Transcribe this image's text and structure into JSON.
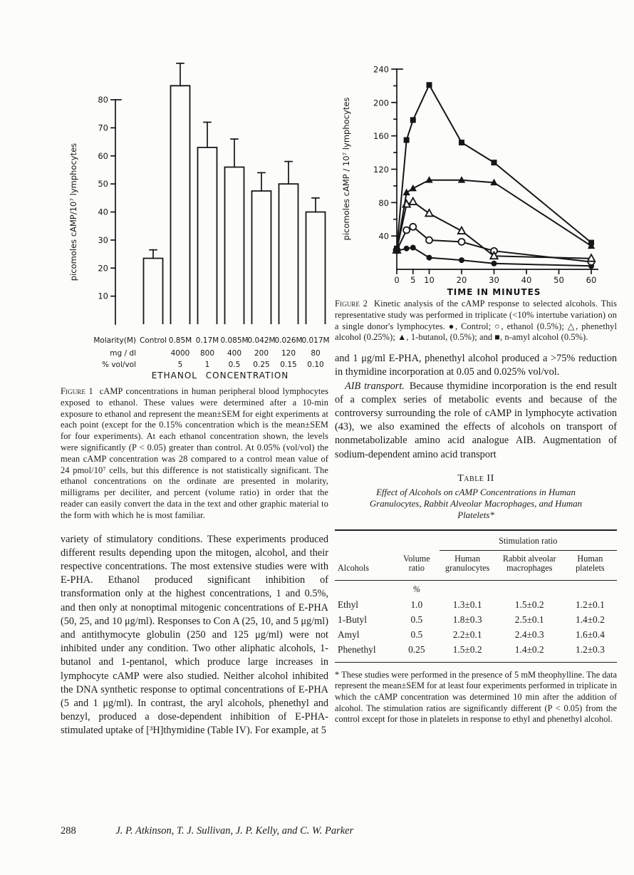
{
  "page": {
    "number": "288",
    "running_authors": "J. P. Atkinson, T. J. Sullivan, J. P. Kelly, and C. W. Parker"
  },
  "figure1": {
    "label": "Figure 1",
    "caption": "cAMP concentrations in human peripheral blood lymphocytes exposed to ethanol. These values were determined after a 10-min exposure to ethanol and represent the mean±SEM for eight experiments at each point (except for the 0.15% concentration which is the mean±SEM for four experiments). At each ethanol concentration shown, the levels were significantly (P < 0.05) greater than control. At 0.05% (vol/vol) the mean cAMP concentration was 28 compared to a control mean value of 24 pmol/10⁷ cells, but this difference is not statistically significant. The ethanol concentrations on the ordinate are presented in molarity, milligrams per deciliter, and percent (volume ratio) in order that the reader can easily convert the data in the text and other graphic material to the form with which he is most familiar."
  },
  "figure2": {
    "label": "Figure 2",
    "caption": "Kinetic analysis of the cAMP response to selected alcohols. This representative study was performed in triplicate (<10% intertube variation) on a single donor's lymphocytes. ●, Control; ○, ethanol (0.5%); △, phenethyl alcohol (0.25%); ▲, 1-butanol, (0.5%); and ■, n-amyl alcohol (0.5%)."
  },
  "body": {
    "left_column": "variety of stimulatory conditions. These experiments produced different results depending upon the mitogen, alcohol, and their respective concentrations. The most extensive studies were with E-PHA. Ethanol produced significant inhibition of transformation only at the highest concentrations, 1 and 0.5%, and then only at nonoptimal mitogenic concentrations of E-PHA (50, 25, and 10 μg/ml). Responses to Con A (25, 10, and 5 μg/ml) and antithymocyte globulin (250 and 125 μg/ml) were not inhibited under any condition. Two other aliphatic alcohols, 1-butanol and 1-pentanol, which produce large increases in lymphocyte cAMP were also studied. Neither alcohol inhibited the DNA synthetic response to optimal concentrations of E-PHA (5 and 1 μg/ml). In contrast, the aryl alcohols, phenethyl and benzyl, produced a dose-dependent inhibition of E-PHA-stimulated uptake of [³H]thymidine (Table IV). For example, at 5",
    "right_p1": "and 1 μg/ml E-PHA, phenethyl alcohol produced a >75% reduction in thymidine incorporation at 0.05 and 0.025% vol/vol.",
    "right_p2_lead": "AIB transport.",
    "right_p2": "Because thymidine incorporation is the end result of a complex series of metabolic events and because of the controversy surrounding the role of cAMP in lymphocyte activation (43), we also examined the effects of alcohols on transport of nonmetabolizable amino acid analogue AIB. Augmentation of sodium-dependent amino acid transport"
  },
  "table2": {
    "label": "Table II",
    "title": "Effect of Alcohols on cAMP Concentrations in Human Granulocytes, Rabbit Alveolar Macrophages, and Human Platelets*",
    "spanner": "Stimulation ratio",
    "columns": [
      "Alcohols",
      "Volume ratio",
      "Human granulocytes",
      "Rabbit alveolar macrophages",
      "Human platelets"
    ],
    "unit": "%",
    "rows": [
      [
        "Ethyl",
        "1.0",
        "1.3±0.1",
        "1.5±0.2",
        "1.2±0.1"
      ],
      [
        "1-Butyl",
        "0.5",
        "1.8±0.3",
        "2.5±0.1",
        "1.4±0.2"
      ],
      [
        "Amyl",
        "0.5",
        "2.2±0.1",
        "2.4±0.3",
        "1.6±0.4"
      ],
      [
        "Phenethyl",
        "0.25",
        "1.5±0.2",
        "1.4±0.2",
        "1.2±0.3"
      ]
    ],
    "footnote": "* These studies were performed in the presence of 5 mM theophylline. The data represent the mean±SEM for at least four experiments performed in triplicate in which the cAMP concentration was determined 10 min after the addition of alcohol. The stimulation ratios are significantly different (P < 0.05) from the control except for those in platelets in response to ethyl and phenethyl alcohol."
  },
  "chart_data": [
    {
      "id": "figure1",
      "type": "bar",
      "title": "",
      "xlabel": "ETHANOL CONCENTRATION",
      "ylabel": "picomoles cAMP/10⁷ lymphocytes",
      "ylim": [
        0,
        93
      ],
      "yticks": [
        10,
        20,
        30,
        40,
        50,
        60,
        70,
        80
      ],
      "categories": [
        "Control",
        "0.85M",
        "0.17M",
        "0.085M",
        "0.042M",
        "0.026M",
        "0.017M"
      ],
      "values": [
        23.5,
        85,
        63,
        56,
        47.5,
        50,
        40
      ],
      "errors": [
        3,
        8,
        9,
        10,
        6.5,
        8,
        5
      ],
      "x_axis_rows": [
        {
          "label": "Molarity(M)",
          "values": [
            "Control",
            "0.85M",
            "0.17M",
            "0.085M",
            "0.042M",
            "0.026M",
            "0.017M"
          ]
        },
        {
          "label": "mg / dl",
          "values": [
            "",
            "4000",
            "800",
            "400",
            "200",
            "120",
            "80"
          ]
        },
        {
          "label": "% vol/vol",
          "values": [
            "",
            "5",
            "1",
            "0.5",
            "0.25",
            "0.15",
            "0.10"
          ]
        }
      ],
      "grid": false,
      "legend_position": "none"
    },
    {
      "id": "figure2",
      "type": "line",
      "title": "",
      "xlabel": "TIME IN MINUTES",
      "ylabel": "picomoles cAMP / 10⁷ lymphocytes",
      "xlim": [
        0,
        62
      ],
      "ylim": [
        0,
        248
      ],
      "xticks": [
        0,
        5,
        10,
        20,
        30,
        40,
        50,
        60
      ],
      "yticks": [
        40,
        80,
        120,
        160,
        200,
        240
      ],
      "yticks_minor": [
        20,
        60,
        100,
        140,
        180,
        220
      ],
      "x": [
        0,
        3,
        5,
        10,
        20,
        30,
        60
      ],
      "series": [
        {
          "name": "Control",
          "marker": "filled-circle",
          "values": [
            22,
            25,
            26,
            14,
            11,
            7,
            4
          ]
        },
        {
          "name": "ethanol (0.5%)",
          "marker": "open-circle",
          "values": [
            23,
            47,
            51,
            35,
            33,
            22,
            9
          ]
        },
        {
          "name": "phenethyl alcohol (0.25%)",
          "marker": "open-triangle",
          "values": [
            23,
            78,
            81,
            67,
            46,
            16,
            13
          ]
        },
        {
          "name": "1-butanol (0.5%)",
          "marker": "filled-triangle",
          "values": [
            23,
            92,
            97,
            107,
            107,
            104,
            28
          ]
        },
        {
          "name": "n-amyl alcohol (0.5%)",
          "marker": "filled-square",
          "values": [
            25,
            155,
            179,
            221,
            152,
            128,
            32
          ]
        }
      ],
      "grid": false,
      "legend_position": "in-caption"
    }
  ]
}
